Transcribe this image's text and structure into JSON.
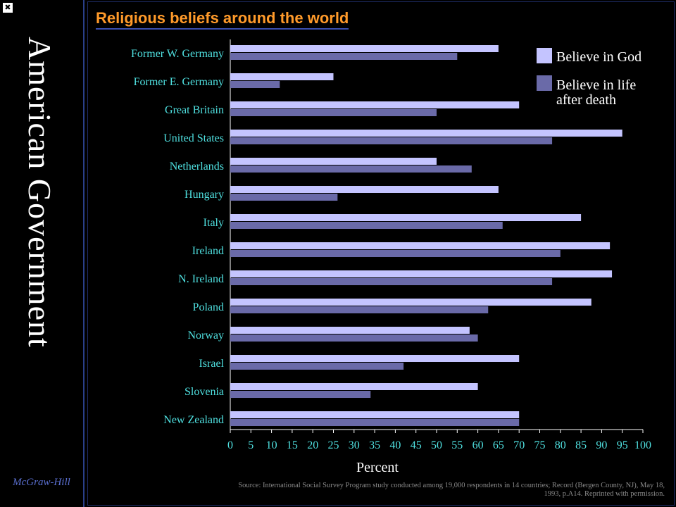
{
  "sidebar": {
    "title": "American Government",
    "publisher": "McGraw-Hill"
  },
  "source_note": "Source: International Social Survey Program study conducted among 19,000 respondents in 14 countries; Record (Bergen County, NJ), May 18, 1993, p.A14. Reprinted with permission.",
  "colors": {
    "god": "#c4c4ff",
    "afterlife": "#6a6aa8",
    "label": "#4fe0e0",
    "title": "#ff9a2a"
  },
  "chart_data": {
    "type": "bar",
    "orientation": "horizontal",
    "title": "Religious beliefs around the world",
    "xlabel": "Percent",
    "ylabel": "",
    "xlim": [
      0,
      100
    ],
    "xticks": [
      0,
      5,
      10,
      15,
      20,
      25,
      30,
      35,
      40,
      45,
      50,
      55,
      60,
      65,
      70,
      75,
      80,
      85,
      90,
      95,
      100
    ],
    "categories": [
      "Former W. Germany",
      "Former E. Germany",
      "Great Britain",
      "United States",
      "Netherlands",
      "Hungary",
      "Italy",
      "Ireland",
      "N. Ireland",
      "Poland",
      "Norway",
      "Israel",
      "Slovenia",
      "New Zealand"
    ],
    "series": [
      {
        "name": "Believe in God",
        "values": [
          65,
          25,
          70,
          95,
          50,
          65,
          85,
          92,
          92.5,
          87.5,
          58,
          70,
          60,
          70
        ]
      },
      {
        "name": "Believe in life after death",
        "values": [
          55,
          12,
          50,
          78,
          58.5,
          26,
          66,
          80,
          78,
          62.5,
          60,
          42,
          34,
          70
        ]
      }
    ],
    "legend_position": "top-right",
    "grid": false
  }
}
